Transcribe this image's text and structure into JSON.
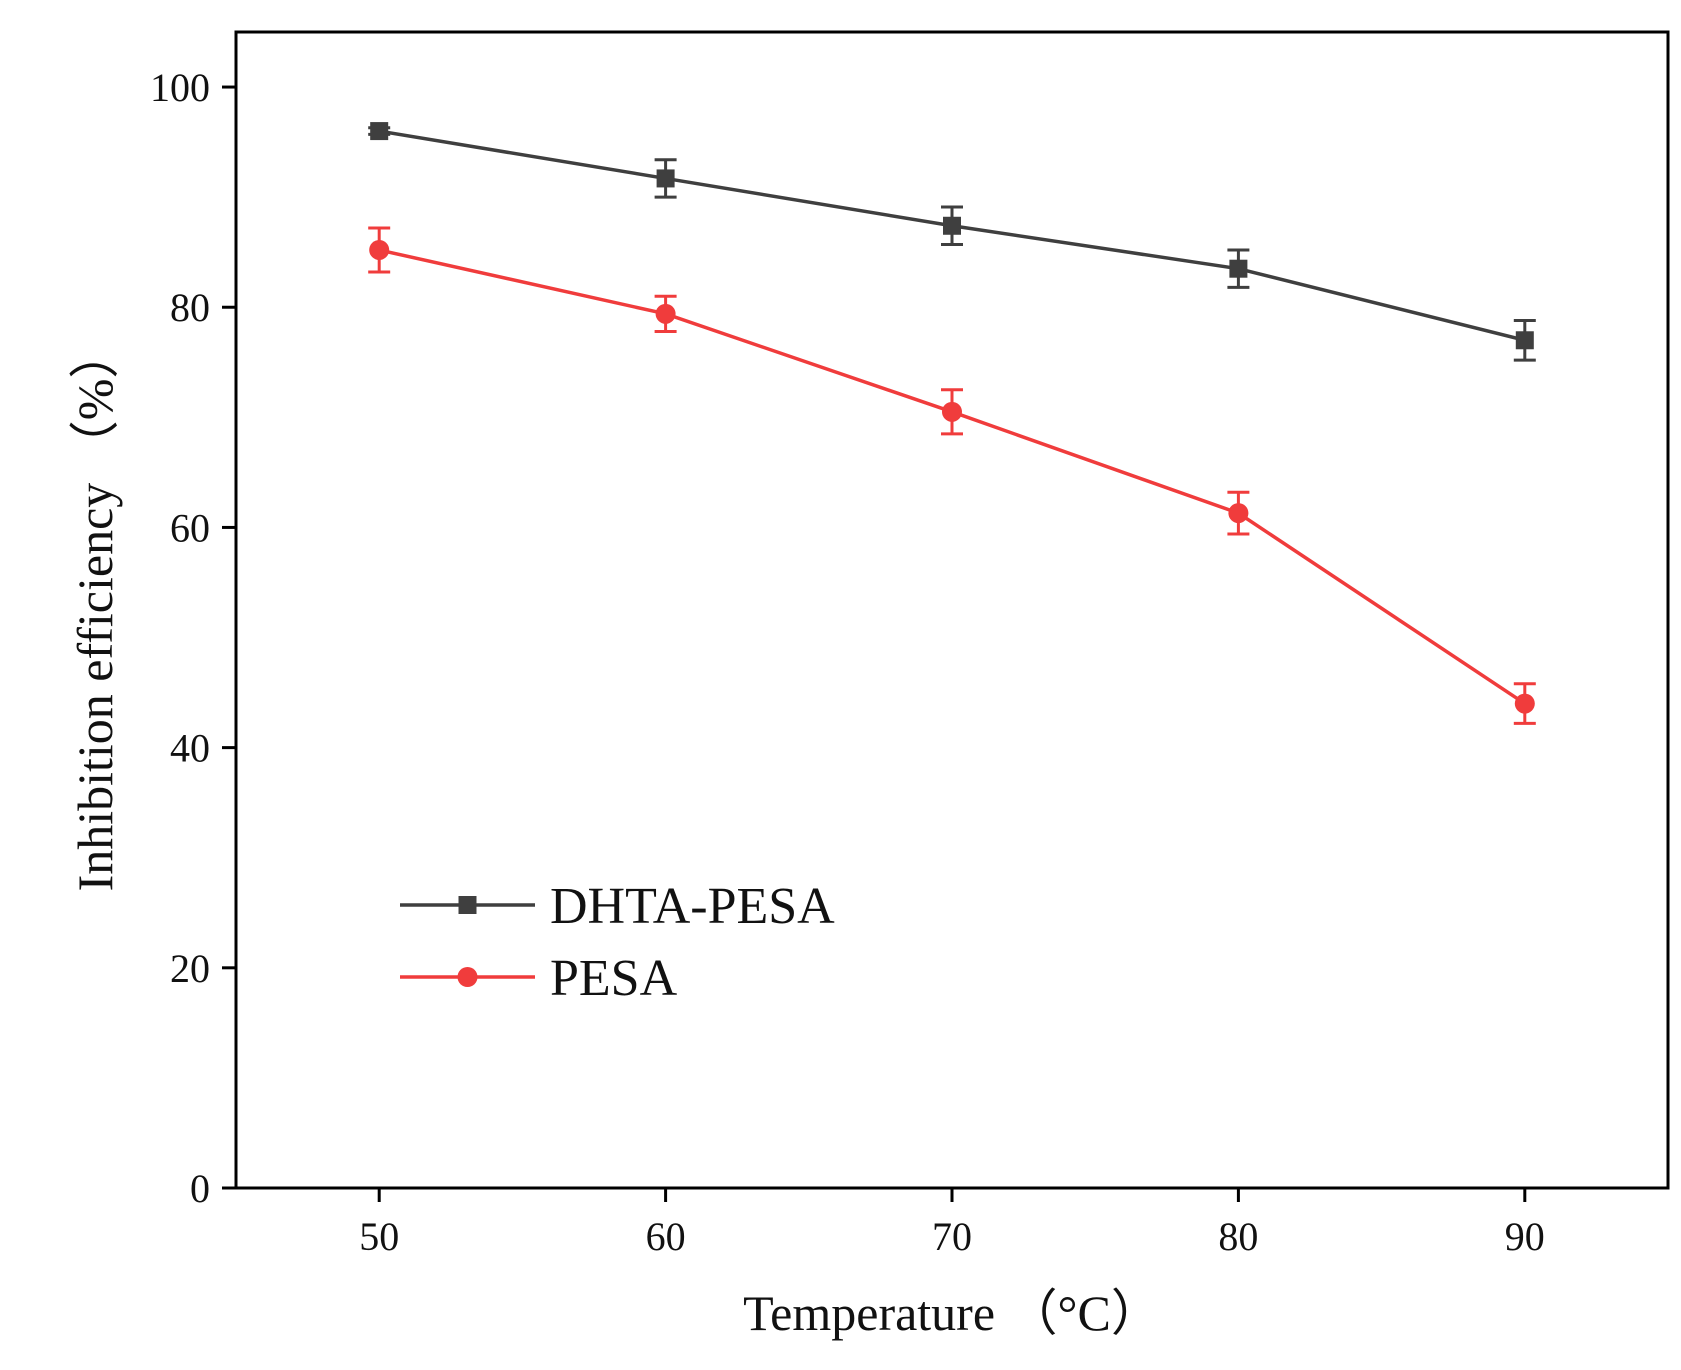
{
  "chart_data": {
    "type": "line",
    "xlabel": "Temperature （°C）",
    "ylabel": "Inhibition efficiency （%）",
    "x": [
      50,
      60,
      70,
      80,
      90
    ],
    "xlim": [
      45,
      95
    ],
    "ylim": [
      0,
      105
    ],
    "xticks": [
      50,
      60,
      70,
      80,
      90
    ],
    "yticks": [
      0,
      20,
      40,
      60,
      80,
      100
    ],
    "grid": false,
    "legend_position": "lower-left",
    "series": [
      {
        "name": "DHTA-PESA",
        "marker": "square",
        "color": "#3f3f3f",
        "values": [
          96,
          91.7,
          87.4,
          83.5,
          77.0
        ],
        "errors": [
          0.3,
          1.7,
          1.7,
          1.7,
          1.8
        ]
      },
      {
        "name": "PESA",
        "marker": "circle",
        "color": "#f03c3c",
        "values": [
          85.2,
          79.4,
          70.5,
          61.3,
          44.0
        ],
        "errors": [
          2.0,
          1.6,
          2.0,
          1.9,
          1.8
        ]
      }
    ]
  }
}
